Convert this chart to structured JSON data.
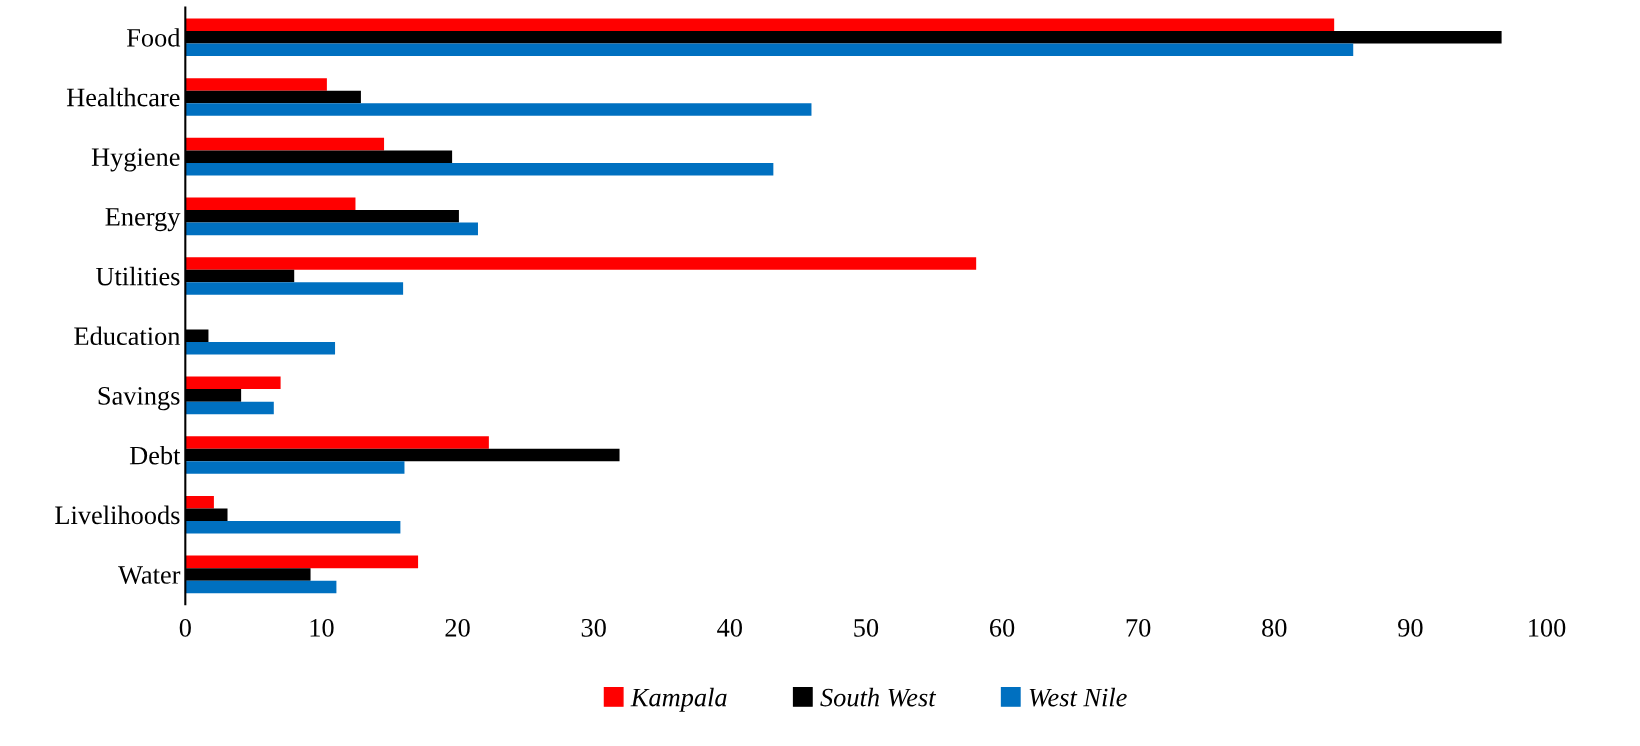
{
  "chart_data": {
    "type": "bar",
    "orientation": "horizontal",
    "categories": [
      "Food",
      "Healthcare",
      "Hygiene",
      "Energy",
      "Utilities",
      "Education",
      "Savings",
      "Debt",
      "Livelihoods",
      "Water"
    ],
    "series": [
      {
        "name": "Kampala",
        "color": "#ff0000",
        "values": [
          84.4,
          10.4,
          14.6,
          12.5,
          58.1,
          null,
          7.0,
          22.3,
          2.1,
          17.1
        ]
      },
      {
        "name": "South West",
        "color": "#000000",
        "values": [
          96.7,
          12.9,
          19.6,
          20.1,
          8.0,
          1.7,
          4.1,
          31.9,
          3.1,
          9.2
        ]
      },
      {
        "name": "West Nile",
        "color": "#0070c0",
        "values": [
          85.8,
          46.0,
          43.2,
          21.5,
          16.0,
          11.0,
          6.5,
          16.1,
          15.8,
          11.1
        ]
      }
    ],
    "xlim": [
      0,
      100
    ],
    "xticks": [
      0,
      10,
      20,
      30,
      40,
      50,
      60,
      70,
      80,
      90,
      100
    ],
    "grid": false,
    "legend": "bottom"
  }
}
